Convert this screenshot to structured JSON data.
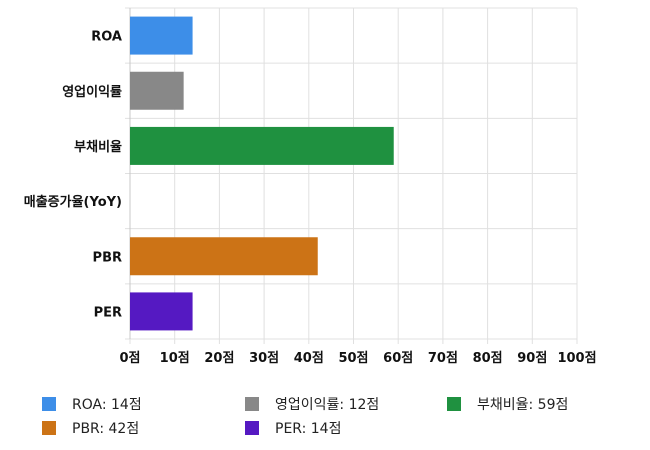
{
  "chart_data": {
    "type": "bar",
    "orientation": "horizontal",
    "categories": [
      "ROA",
      "영업이익률",
      "부채비율",
      "매출증가율(YoY)",
      "PBR",
      "PER"
    ],
    "values": [
      14,
      12,
      59,
      null,
      42,
      14
    ],
    "colors": [
      "#3d8ee8",
      "#888888",
      "#1f9140",
      null,
      "#cc7316",
      "#5519c2"
    ],
    "xlim": [
      0,
      100
    ],
    "x_ticks": [
      0,
      10,
      20,
      30,
      40,
      50,
      60,
      70,
      80,
      90,
      100
    ],
    "x_tick_labels": [
      "0점",
      "10점",
      "20점",
      "30점",
      "40점",
      "50점",
      "60점",
      "70점",
      "80점",
      "90점",
      "100점"
    ],
    "grid": true,
    "legend_position": "bottom",
    "legend": [
      {
        "label": "ROA: 14점",
        "color": "#3d8ee8"
      },
      {
        "label": "영업이익률: 12점",
        "color": "#888888"
      },
      {
        "label": "부채비율: 59점",
        "color": "#1f9140"
      },
      {
        "label": "PBR: 42점",
        "color": "#cc7316"
      },
      {
        "label": "PER: 14점",
        "color": "#5519c2"
      }
    ]
  }
}
